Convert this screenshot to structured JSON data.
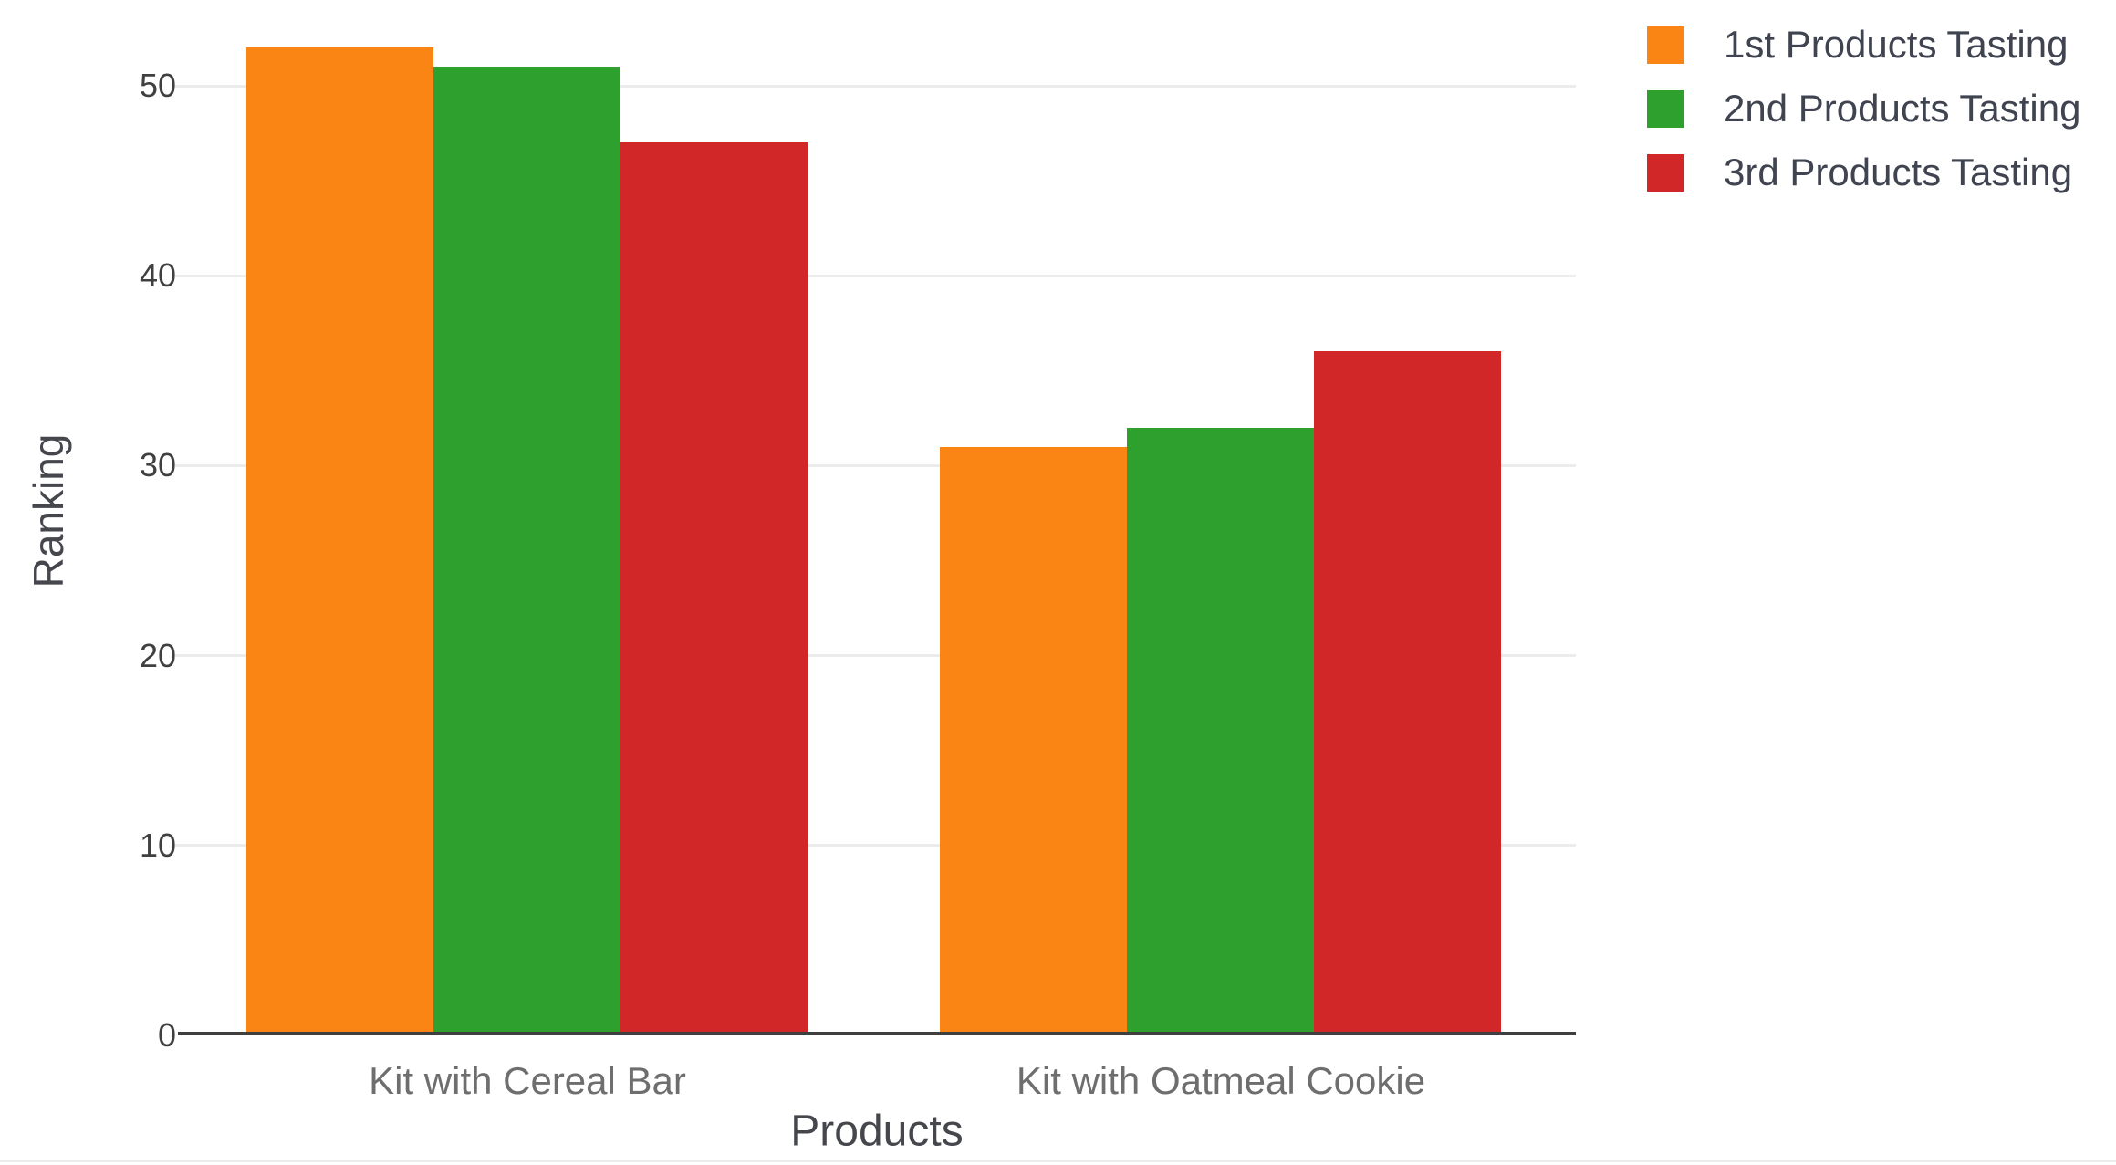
{
  "chart_data": {
    "type": "bar",
    "categories": [
      "Kit with Cereal Bar",
      "Kit with Oatmeal Cookie"
    ],
    "series": [
      {
        "name": "1st Products Tasting",
        "color": "#FA8414",
        "values": [
          52,
          31
        ]
      },
      {
        "name": "2nd Products Tasting",
        "color": "#2EA02E",
        "values": [
          51,
          32
        ]
      },
      {
        "name": "3rd Products Tasting",
        "color": "#D22728",
        "values": [
          47,
          36
        ]
      }
    ],
    "title": "",
    "xlabel": "Products",
    "ylabel": "Ranking",
    "yticks": [
      0,
      10,
      20,
      30,
      40,
      50
    ],
    "ylim": [
      0,
      55.2
    ],
    "grid": true,
    "legend_position": "top-right"
  },
  "colors": {
    "background": "#ffffff",
    "axis_line": "#3F3F3F",
    "gridline": "#ECECEC",
    "tick_label": "#404040",
    "category_label": "#6E6E6E",
    "axis_title": "#45474D",
    "legend_text": "#3F4450",
    "page_bottom_border": "#EBEBEB"
  }
}
